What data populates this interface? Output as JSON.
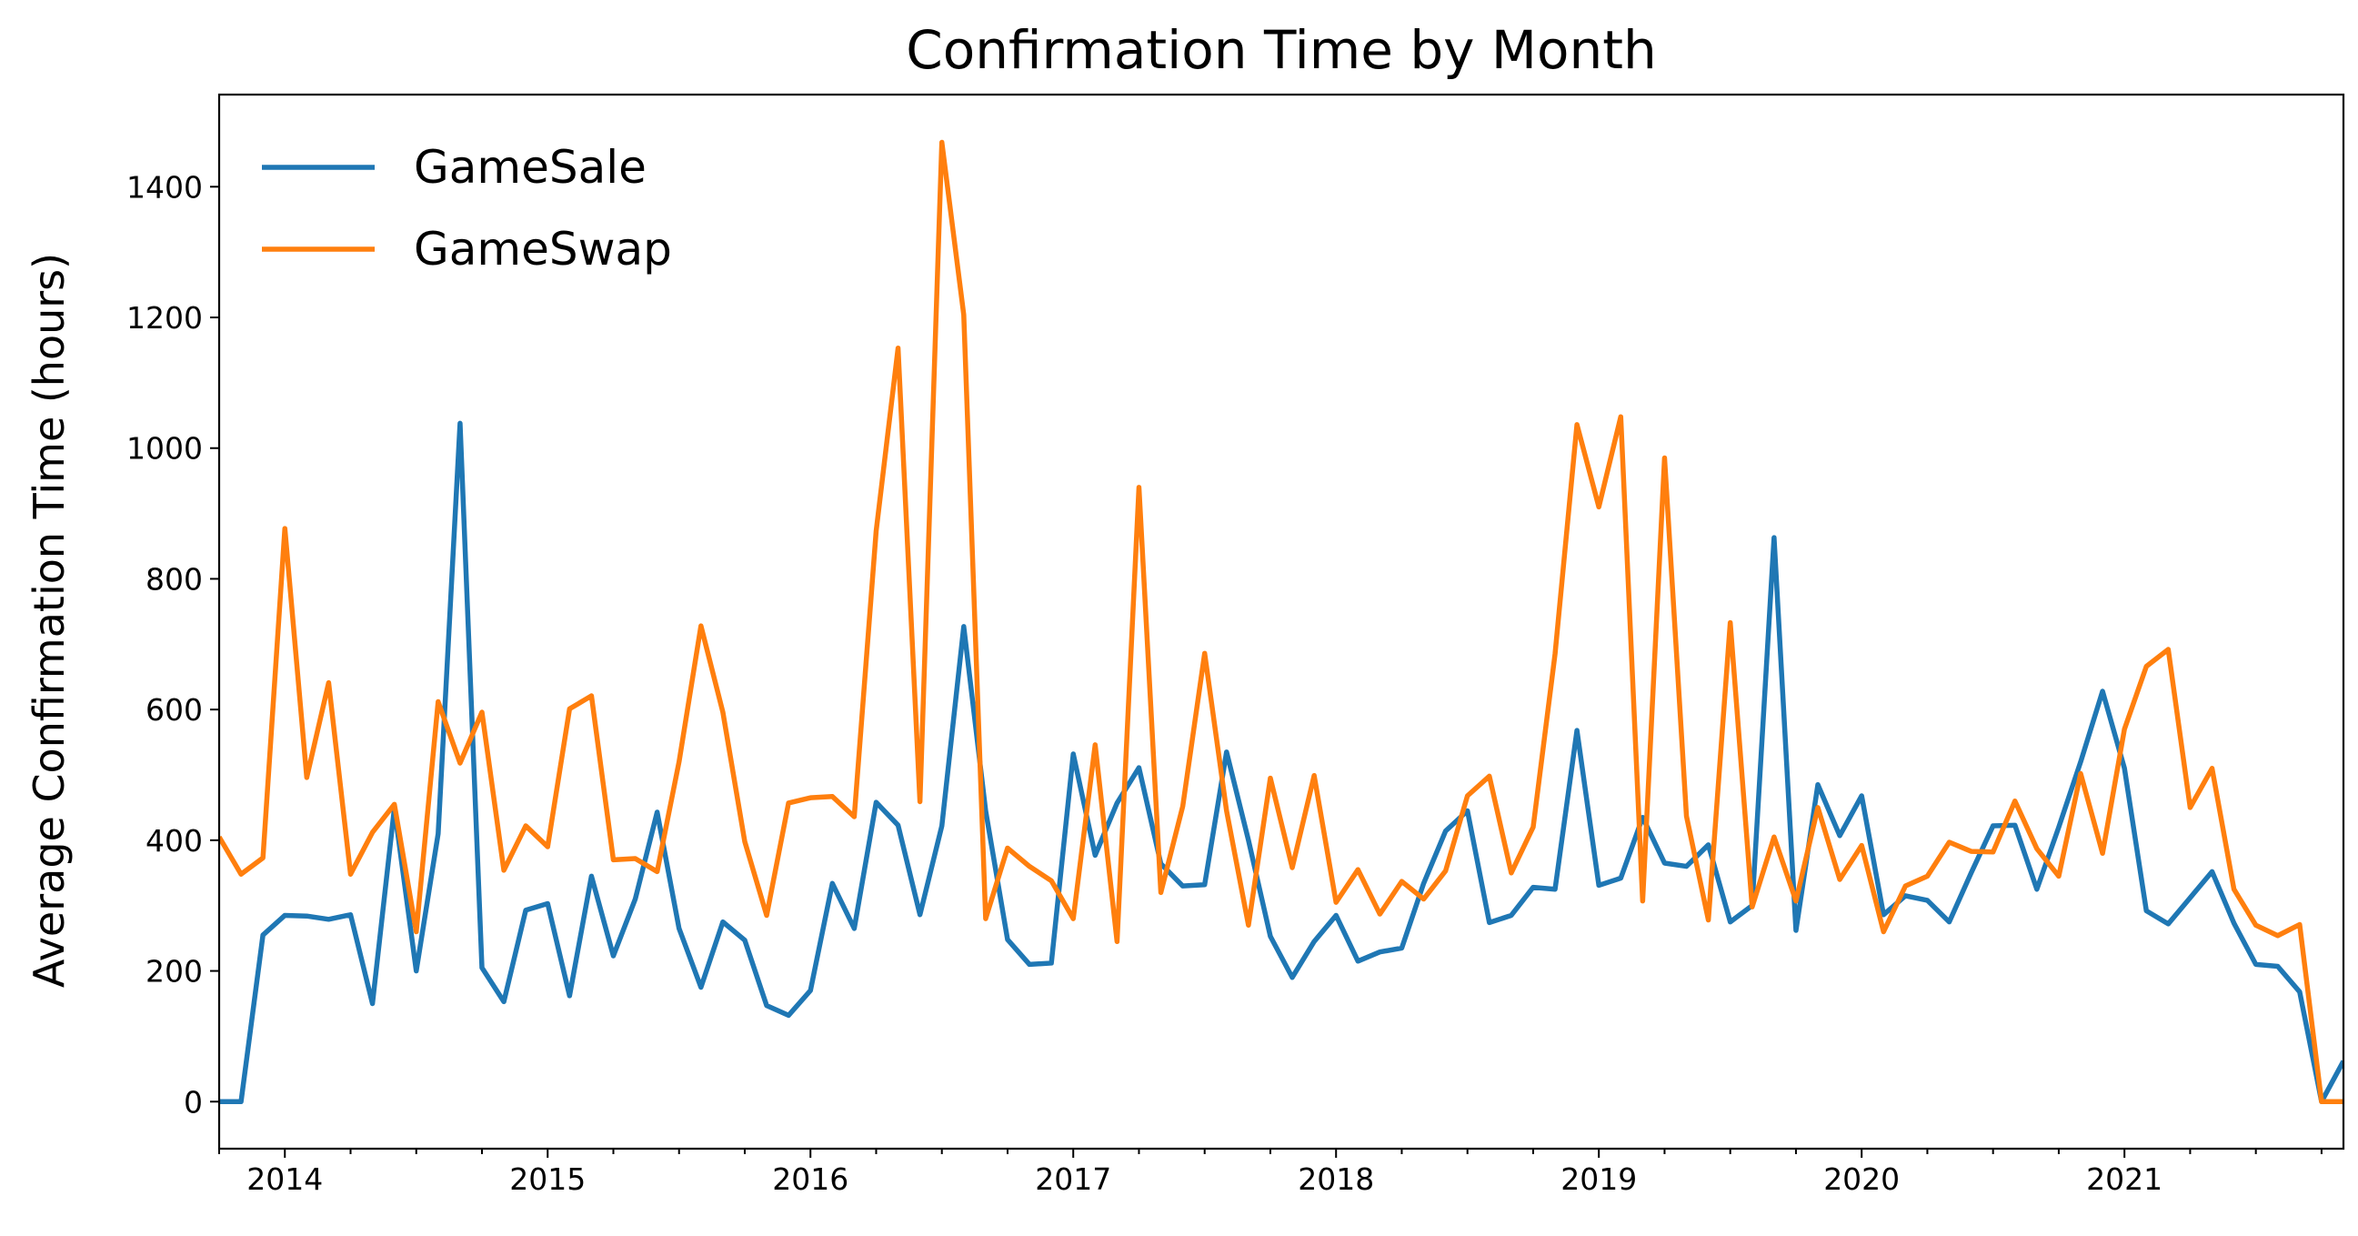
{
  "chart_data": {
    "type": "line",
    "title": "Confirmation Time by Month",
    "xlabel": "",
    "ylabel": "Average Confirmation Time (hours)",
    "x_start": "2013-10",
    "x_end": "2021-11",
    "xlim": [
      "2013-10",
      "2021-11"
    ],
    "ylim": [
      -72,
      1541
    ],
    "yticks": [
      0,
      200,
      400,
      600,
      800,
      1000,
      1200,
      1400
    ],
    "xticks": [
      {
        "date": "2014-01",
        "label": "2014"
      },
      {
        "date": "2015-01",
        "label": "2015"
      },
      {
        "date": "2016-01",
        "label": "2016"
      },
      {
        "date": "2017-01",
        "label": "2017"
      },
      {
        "date": "2018-01",
        "label": "2018"
      },
      {
        "date": "2019-01",
        "label": "2019"
      },
      {
        "date": "2020-01",
        "label": "2020"
      },
      {
        "date": "2021-01",
        "label": "2021"
      }
    ],
    "grid": false,
    "legend_position": "top-left",
    "series": [
      {
        "name": "GameSale",
        "color": "#1f77b4",
        "values": [
          0,
          0,
          255,
          285,
          284,
          279,
          286,
          150,
          449,
          200,
          410,
          1038,
          205,
          153,
          293,
          303,
          162,
          345,
          223,
          310,
          443,
          265,
          175,
          275,
          247,
          147,
          132,
          170,
          334,
          265,
          458,
          423,
          286,
          422,
          727,
          445,
          248,
          210,
          212,
          532,
          377,
          457,
          511,
          364,
          330,
          332,
          535,
          400,
          253,
          190,
          245,
          285,
          215,
          229,
          235,
          334,
          414,
          445,
          274,
          285,
          328,
          325,
          568,
          331,
          342,
          435,
          365,
          360,
          393,
          275,
          300,
          863,
          262,
          485,
          407,
          468,
          286,
          315,
          308,
          275,
          350,
          422,
          423,
          325,
          420,
          520,
          628,
          510,
          292,
          272,
          312,
          352,
          273,
          210,
          207,
          168,
          0,
          62
        ]
      },
      {
        "name": "GameSwap",
        "color": "#ff7f0e",
        "values": [
          405,
          348,
          373,
          877,
          496,
          641,
          348,
          412,
          455,
          260,
          612,
          518,
          596,
          354,
          422,
          390,
          601,
          621,
          370,
          372,
          352,
          520,
          728,
          596,
          398,
          285,
          457,
          465,
          467,
          436,
          873,
          1153,
          459,
          1468,
          1204,
          280,
          388,
          360,
          338,
          280,
          546,
          245,
          940,
          320,
          452,
          686,
          445,
          270,
          495,
          358,
          499,
          305,
          355,
          287,
          337,
          310,
          353,
          468,
          498,
          350,
          420,
          685,
          1036,
          910,
          1048,
          307,
          985,
          437,
          278,
          733,
          298,
          405,
          307,
          450,
          340,
          392,
          260,
          330,
          345,
          397,
          383,
          382,
          460,
          387,
          345,
          502,
          380,
          570,
          666,
          692,
          450,
          510,
          325,
          270,
          254,
          271,
          0,
          0
        ]
      }
    ]
  }
}
